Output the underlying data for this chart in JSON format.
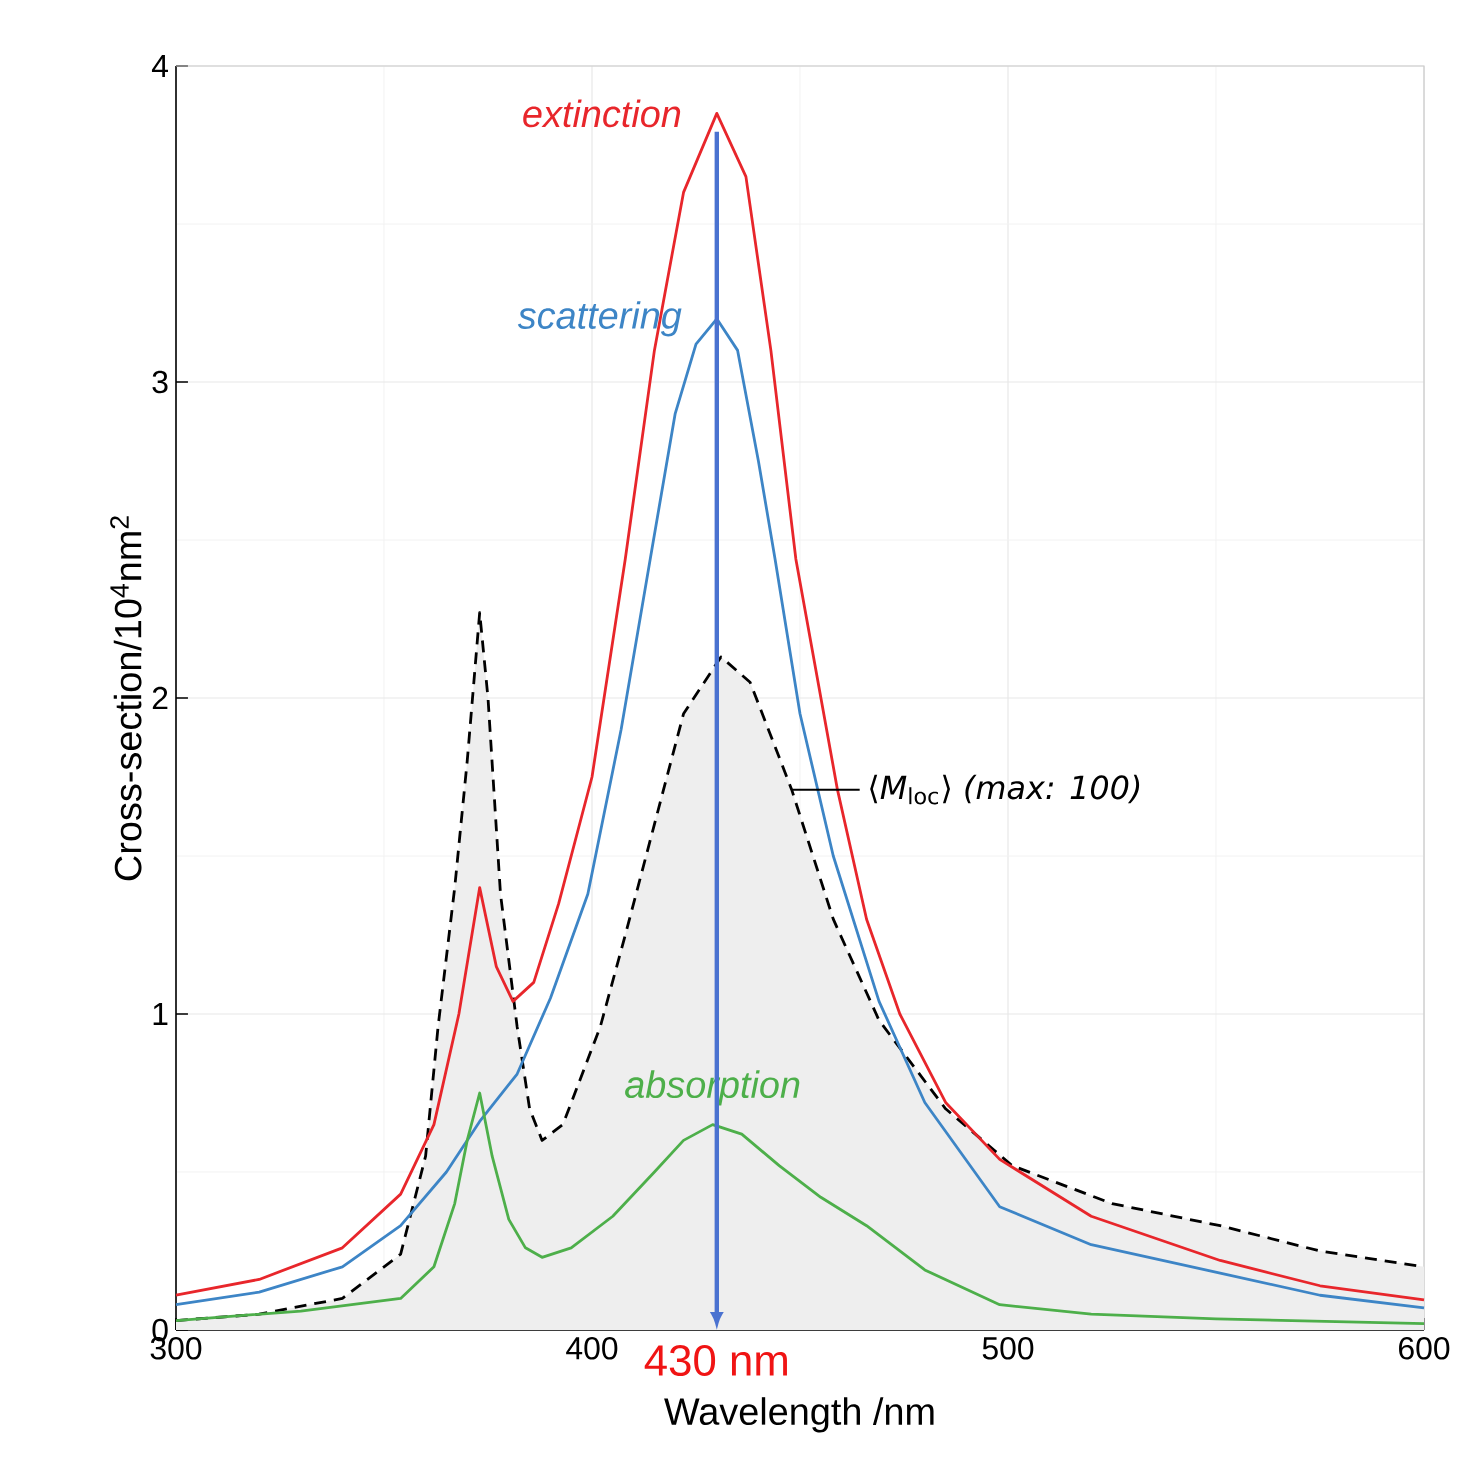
{
  "chart_data": {
    "type": "line",
    "xlabel": "Wavelength /nm",
    "ylabel": "Cross-section/10$^{4}$nm$^{2}$",
    "xlim": [
      300,
      600
    ],
    "ylim": [
      0,
      4
    ],
    "xticks": [
      300,
      400,
      500,
      600
    ],
    "yticks": [
      0,
      1,
      2,
      3,
      4
    ],
    "grid": true,
    "series": [
      {
        "name": "extinction",
        "color": "#e8262b",
        "x": [
          300,
          320,
          340,
          354,
          362,
          368,
          373,
          377,
          381,
          386,
          392,
          400,
          408,
          415,
          422,
          430,
          437,
          443,
          449,
          459,
          466,
          474,
          485,
          498,
          520,
          551,
          575,
          600
        ],
        "values": [
          0.11,
          0.16,
          0.26,
          0.43,
          0.65,
          1.0,
          1.4,
          1.15,
          1.04,
          1.1,
          1.35,
          1.75,
          2.44,
          3.1,
          3.6,
          3.85,
          3.65,
          3.1,
          2.44,
          1.71,
          1.3,
          1.0,
          0.72,
          0.54,
          0.36,
          0.22,
          0.14,
          0.095
        ]
      },
      {
        "name": "scattering",
        "color": "#3d85c6",
        "x": [
          300,
          320,
          340,
          354,
          365,
          373,
          382,
          390,
          399,
          407,
          414,
          420,
          425,
          430,
          435,
          440,
          444,
          450,
          458,
          469,
          480,
          498,
          520,
          551,
          575,
          600
        ],
        "values": [
          0.08,
          0.12,
          0.2,
          0.33,
          0.5,
          0.66,
          0.81,
          1.05,
          1.38,
          1.9,
          2.44,
          2.9,
          3.12,
          3.2,
          3.1,
          2.75,
          2.44,
          1.95,
          1.5,
          1.04,
          0.72,
          0.39,
          0.27,
          0.18,
          0.11,
          0.07
        ]
      },
      {
        "name": "absorption",
        "color": "#4daf4a",
        "x": [
          300,
          330,
          354,
          362,
          367,
          370,
          373,
          376,
          380,
          384,
          388,
          395,
          405,
          415,
          422,
          429,
          436,
          445,
          455,
          466,
          480,
          498,
          520,
          550,
          600
        ],
        "values": [
          0.03,
          0.06,
          0.1,
          0.2,
          0.4,
          0.6,
          0.75,
          0.55,
          0.35,
          0.26,
          0.23,
          0.26,
          0.36,
          0.5,
          0.6,
          0.65,
          0.62,
          0.52,
          0.42,
          0.33,
          0.19,
          0.08,
          0.05,
          0.035,
          0.02
        ]
      },
      {
        "type": "area",
        "color": "#000000",
        "line_style": "dashed",
        "x": [
          300,
          320,
          340,
          354,
          360,
          363,
          367,
          370,
          373,
          375,
          378,
          382,
          385,
          388,
          393,
          402,
          408,
          415,
          422,
          431,
          438,
          448,
          458,
          469,
          485,
          501,
          525,
          551,
          575,
          600
        ],
        "values": [
          0.03,
          0.05,
          0.1,
          0.24,
          0.55,
          0.96,
          1.4,
          1.8,
          2.27,
          2.0,
          1.38,
          0.96,
          0.7,
          0.6,
          0.65,
          0.96,
          1.25,
          1.6,
          1.95,
          2.13,
          2.05,
          1.71,
          1.3,
          0.98,
          0.7,
          0.52,
          0.4,
          0.33,
          0.25,
          0.2
        ]
      }
    ],
    "ref_lines": [
      {
        "axis": "x",
        "value": 430,
        "label": "430 nm",
        "color": "#4a72d0"
      }
    ],
    "annotations": [
      {
        "text": "⟨*M*$_{loc}$⟩ *(max: 100)*",
        "x": 448,
        "y": 1.71
      }
    ]
  }
}
